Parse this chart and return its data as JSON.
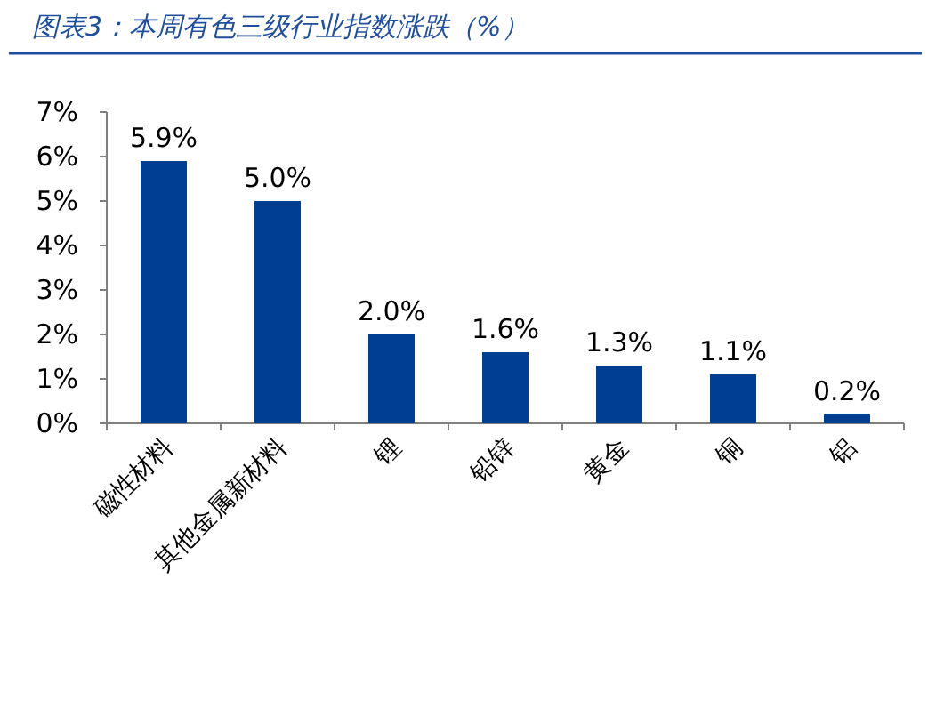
{
  "chart_data": {
    "type": "bar",
    "title": "图表3：本周有色三级行业指数涨跌（%）",
    "categories": [
      "磁性材料",
      "其他金属新材料",
      "锂",
      "铅锌",
      "黄金",
      "铜",
      "铝"
    ],
    "values": [
      5.9,
      5.0,
      2.0,
      1.6,
      1.3,
      1.1,
      0.2
    ],
    "value_labels": [
      "5.9%",
      "5.0%",
      "2.0%",
      "1.6%",
      "1.3%",
      "1.1%",
      "0.2%"
    ],
    "color": "#003e94",
    "ylim": [
      0,
      7
    ],
    "yticks": [
      {
        "value": 0,
        "label": "0%"
      },
      {
        "value": 1,
        "label": "1%"
      },
      {
        "value": 2,
        "label": "2%"
      },
      {
        "value": 3,
        "label": "3%"
      },
      {
        "value": 4,
        "label": "4%"
      },
      {
        "value": 5,
        "label": "5%"
      },
      {
        "value": 6,
        "label": "6%"
      },
      {
        "value": 7,
        "label": "7%"
      }
    ],
    "grid": false
  }
}
